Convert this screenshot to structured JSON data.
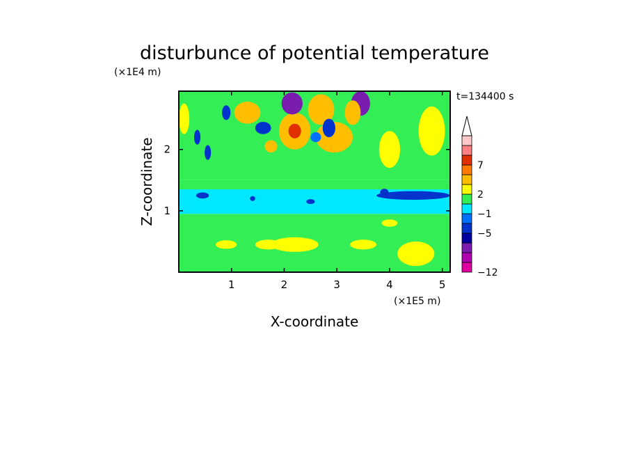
{
  "chart_data": {
    "type": "heatmap",
    "title": "disturbunce of potential temperature",
    "time_label": "t=134400 s",
    "xlabel": "X-coordinate",
    "ylabel": "Z-coordinate",
    "x_unit": "(×1E5 m)",
    "y_unit": "(×1E4 m)",
    "xlim": [
      0,
      5.15
    ],
    "ylim": [
      0,
      2.95
    ],
    "x_ticks": [
      1,
      2,
      3,
      4,
      5
    ],
    "y_ticks": [
      1,
      2
    ],
    "x_tick_labels": [
      "1",
      "2",
      "3",
      "4",
      "5"
    ],
    "y_tick_labels": [
      "1",
      "2"
    ],
    "colorbar": {
      "levels": [
        -12,
        -10,
        -8,
        -6,
        -5,
        -3,
        -1,
        0,
        2,
        4,
        5,
        7,
        9,
        11
      ],
      "colors": [
        "#e000a0",
        "#b000b0",
        "#7a1cb0",
        "#0000a0",
        "#0033cc",
        "#0070ff",
        "#00e8ff",
        "#33ee55",
        "#ffff00",
        "#ffbf00",
        "#ff7a00",
        "#e03000",
        "#ff8080",
        "#ffc8c8"
      ],
      "labels": [
        {
          "value": 7,
          "text": "7"
        },
        {
          "value": 2,
          "text": "2"
        },
        {
          "value": -1,
          "text": "−1"
        },
        {
          "value": -5,
          "text": "−5"
        },
        {
          "value": -12,
          "text": "−12"
        }
      ],
      "extend": "max"
    },
    "bands": [
      {
        "z0": 0,
        "z1": 0.8,
        "value": 0.8
      },
      {
        "z0": 0.8,
        "z1": 0.95,
        "value": 0.3
      },
      {
        "z0": 0.95,
        "z1": 1.35,
        "value": -0.6
      },
      {
        "z0": 1.35,
        "z1": 1.5,
        "value": 0.2
      },
      {
        "z0": 1.5,
        "z1": 2.95,
        "value": 1.5
      }
    ],
    "features": [
      {
        "x": 2.2,
        "z": 2.3,
        "rx": 0.12,
        "rz": 0.12,
        "value": 8
      },
      {
        "x": 2.2,
        "z": 2.3,
        "rx": 0.3,
        "rz": 0.3,
        "value": 4
      },
      {
        "x": 1.3,
        "z": 2.6,
        "rx": 0.25,
        "rz": 0.18,
        "value": 4
      },
      {
        "x": 2.7,
        "z": 2.65,
        "rx": 0.25,
        "rz": 0.25,
        "value": 4
      },
      {
        "x": 2.95,
        "z": 2.2,
        "rx": 0.35,
        "rz": 0.25,
        "value": 4
      },
      {
        "x": 3.3,
        "z": 2.6,
        "rx": 0.15,
        "rz": 0.2,
        "value": 4
      },
      {
        "x": 1.75,
        "z": 2.05,
        "rx": 0.12,
        "rz": 0.1,
        "value": 4
      },
      {
        "x": 2.15,
        "z": 2.75,
        "rx": 0.2,
        "rz": 0.18,
        "value": -7
      },
      {
        "x": 3.45,
        "z": 2.75,
        "rx": 0.18,
        "rz": 0.2,
        "value": -7
      },
      {
        "x": 1.6,
        "z": 2.35,
        "rx": 0.15,
        "rz": 0.1,
        "value": -4
      },
      {
        "x": 2.85,
        "z": 2.35,
        "rx": 0.12,
        "rz": 0.15,
        "value": -4
      },
      {
        "x": 2.6,
        "z": 2.2,
        "rx": 0.1,
        "rz": 0.08,
        "value": -2
      },
      {
        "x": 0.35,
        "z": 2.2,
        "rx": 0.06,
        "rz": 0.12,
        "value": -4
      },
      {
        "x": 0.55,
        "z": 1.95,
        "rx": 0.06,
        "rz": 0.12,
        "value": -4
      },
      {
        "x": 0.9,
        "z": 2.6,
        "rx": 0.08,
        "rz": 0.12,
        "value": -4
      },
      {
        "x": 4.45,
        "z": 1.25,
        "rx": 0.7,
        "rz": 0.07,
        "value": -5
      },
      {
        "x": 3.9,
        "z": 1.3,
        "rx": 0.08,
        "rz": 0.06,
        "value": -5
      },
      {
        "x": 0.45,
        "z": 1.25,
        "rx": 0.12,
        "rz": 0.05,
        "value": -4
      },
      {
        "x": 1.4,
        "z": 1.2,
        "rx": 0.05,
        "rz": 0.04,
        "value": -4
      },
      {
        "x": 2.5,
        "z": 1.15,
        "rx": 0.08,
        "rz": 0.04,
        "value": -4
      },
      {
        "x": 2.2,
        "z": 0.45,
        "rx": 0.45,
        "rz": 0.12,
        "value": 2.5
      },
      {
        "x": 1.7,
        "z": 0.45,
        "rx": 0.25,
        "rz": 0.08,
        "value": 2.5
      },
      {
        "x": 3.5,
        "z": 0.45,
        "rx": 0.25,
        "rz": 0.08,
        "value": 2.5
      },
      {
        "x": 0.9,
        "z": 0.45,
        "rx": 0.2,
        "rz": 0.07,
        "value": 2.5
      },
      {
        "x": 4.5,
        "z": 0.3,
        "rx": 0.35,
        "rz": 0.2,
        "value": 3
      },
      {
        "x": 4.0,
        "z": 0.8,
        "rx": 0.15,
        "rz": 0.06,
        "value": 2.5
      },
      {
        "x": 2.0,
        "z": 0.05,
        "rx": 1.2,
        "rz": 0.05,
        "value": 0.2
      },
      {
        "x": 0.05,
        "z": 0.2,
        "rx": 0.05,
        "rz": 0.2,
        "value": 0.2
      },
      {
        "x": 4.8,
        "z": 2.3,
        "rx": 0.25,
        "rz": 0.4,
        "value": 3
      },
      {
        "x": 4.0,
        "z": 2.0,
        "rx": 0.2,
        "rz": 0.3,
        "value": 3
      },
      {
        "x": 0.1,
        "z": 2.5,
        "rx": 0.1,
        "rz": 0.25,
        "value": 3
      }
    ]
  }
}
